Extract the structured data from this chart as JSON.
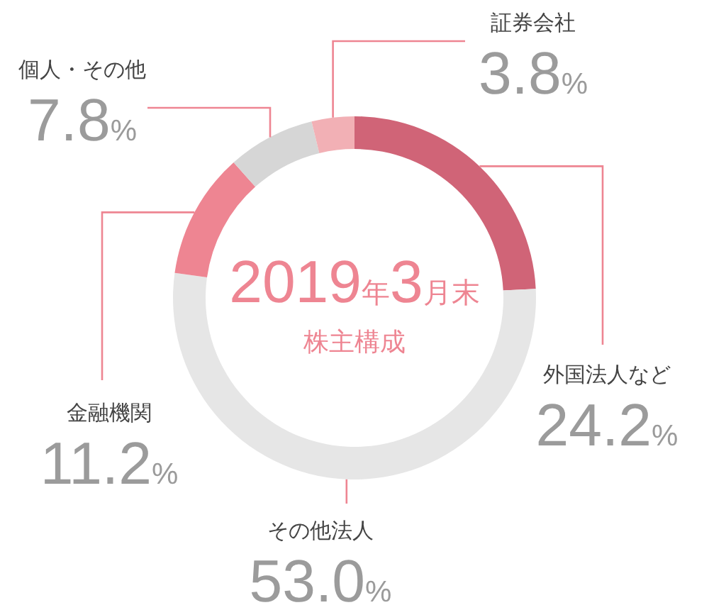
{
  "chart_data": {
    "type": "donut",
    "title": "2019年3月末",
    "subtitle": "株主構成",
    "categories": [
      "外国法人など",
      "その他法人",
      "金融機関",
      "個人・その他",
      "証券会社"
    ],
    "values": [
      24.2,
      53.0,
      11.2,
      7.8,
      3.8
    ],
    "colors": [
      "#d06477",
      "#e6e6e6",
      "#ee8592",
      "#d6d6d6",
      "#f2b0b5"
    ],
    "value_labels": [
      "24.2%",
      "53.0%",
      "11.2%",
      "7.8%",
      "3.8%"
    ]
  }
}
